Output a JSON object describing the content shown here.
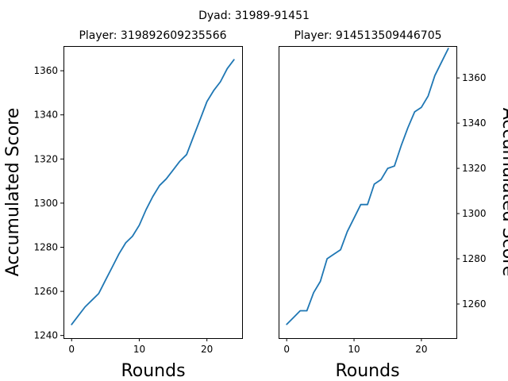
{
  "figure": {
    "suptitle": "Dyad: 31989-91451"
  },
  "colors": {
    "line": "#1f77b4"
  },
  "chart_data": [
    {
      "type": "line",
      "title": "Player: 319892609235566",
      "xlabel": "Rounds",
      "ylabel": "Accumulated Score",
      "yaxis_side": "left",
      "xlim": [
        -1.2,
        25.2
      ],
      "ylim": [
        1238.8,
        1371.2
      ],
      "xticks": [
        0,
        10,
        20
      ],
      "yticks": [
        1240,
        1260,
        1280,
        1300,
        1320,
        1340,
        1360
      ],
      "x": [
        0,
        1,
        2,
        3,
        4,
        5,
        6,
        7,
        8,
        9,
        10,
        11,
        12,
        13,
        14,
        15,
        16,
        17,
        18,
        19,
        20,
        21,
        22,
        23,
        24
      ],
      "y": [
        1245,
        1249,
        1253,
        1256,
        1259,
        1265,
        1271,
        1277,
        1282,
        1285,
        1290,
        1297,
        1303,
        1308,
        1311,
        1315,
        1319,
        1322,
        1330,
        1338,
        1346,
        1351,
        1355,
        1361,
        1365
      ]
    },
    {
      "type": "line",
      "title": "Player: 914513509446705",
      "xlabel": "Rounds",
      "ylabel": "Accumulated Score",
      "yaxis_side": "right",
      "xlim": [
        -1.2,
        25.2
      ],
      "ylim": [
        1244.9,
        1374.1
      ],
      "xticks": [
        0,
        10,
        20
      ],
      "yticks": [
        1260,
        1280,
        1300,
        1320,
        1340,
        1360
      ],
      "x": [
        0,
        1,
        2,
        3,
        4,
        5,
        6,
        7,
        8,
        9,
        10,
        11,
        12,
        13,
        14,
        15,
        16,
        17,
        18,
        19,
        20,
        21,
        22,
        23,
        24
      ],
      "y": [
        1251,
        1254,
        1257,
        1257,
        1265,
        1270,
        1280,
        1282,
        1284,
        1292,
        1298,
        1304,
        1304,
        1313,
        1315,
        1320,
        1321,
        1330,
        1338,
        1345,
        1347,
        1352,
        1361,
        1367,
        1373
      ]
    }
  ]
}
